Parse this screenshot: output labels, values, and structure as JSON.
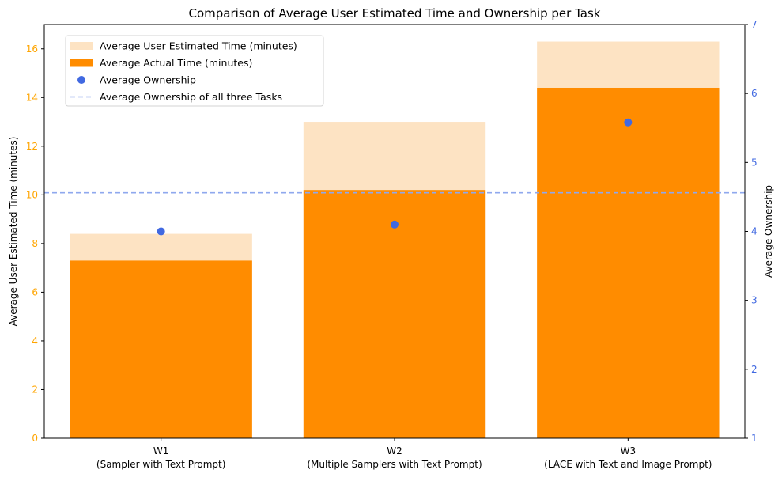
{
  "chart_data": {
    "type": "bar",
    "title": "Comparison of Average User Estimated Time and Ownership per Task",
    "categories": [
      "W1\n(Sampler with Text Prompt)",
      "W2\n(Multiple Samplers with Text Prompt)",
      "W3\n(LACE with Text and Image Prompt)"
    ],
    "series": [
      {
        "name": "Average User Estimated Time (minutes)",
        "kind": "bar",
        "axis": "left",
        "color": "#FDE3C3",
        "values": [
          8.4,
          13.0,
          16.3
        ]
      },
      {
        "name": "Average Actual Time (minutes)",
        "kind": "bar",
        "axis": "left",
        "color": "#FF8C00",
        "values": [
          7.3,
          10.2,
          14.4
        ]
      },
      {
        "name": "Average Ownership",
        "kind": "scatter",
        "axis": "right",
        "color": "#4169E1",
        "values": [
          4.0,
          4.1,
          5.58
        ]
      }
    ],
    "reference_line": {
      "name": "Average Ownership of all three Tasks",
      "axis": "right",
      "value": 4.56,
      "color": "#8FA8EE",
      "style": "dashed"
    },
    "ylabel": "Average User Estimated Time (minutes)",
    "ylabel_right": "Average Ownership",
    "ylim": [
      0,
      17
    ],
    "ylim_right": [
      1,
      7
    ],
    "yticks": [
      0,
      2,
      4,
      6,
      8,
      10,
      12,
      14,
      16
    ],
    "yticks_right": [
      1,
      2,
      3,
      4,
      5,
      6,
      7
    ],
    "left_tick_color": "#FFA500",
    "right_tick_color": "#4169E1",
    "grid": false,
    "legend_position": "top-left"
  }
}
